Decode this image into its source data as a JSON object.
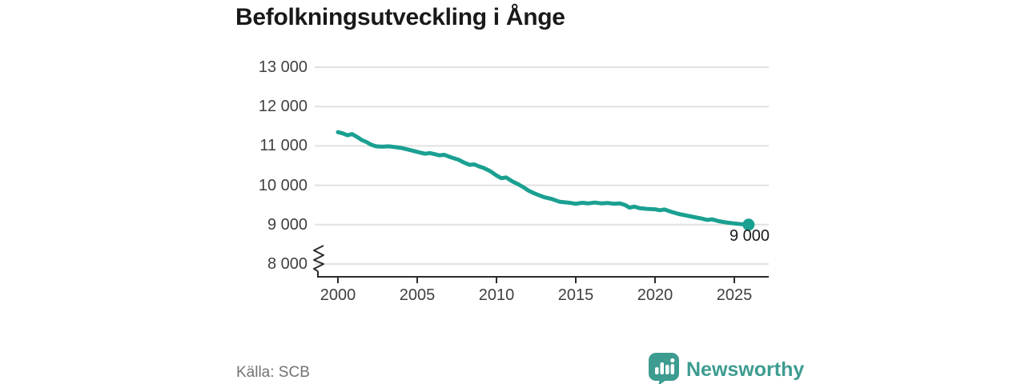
{
  "title": "Befolkningsutveckling i Ånge",
  "source": "Källa: SCB",
  "brand": {
    "name": "Newsworthy",
    "icon": "newsworthy-speech-bubble-bar-chart",
    "color": "#3d9c90"
  },
  "colors": {
    "line": "#1aa091",
    "grid": "#e1e1e1",
    "axis": "#2b2b2b",
    "tick_text": "#404040",
    "title_text": "#191919",
    "source_text": "#737373"
  },
  "chart_data": {
    "type": "line",
    "title": "Befolkningsutveckling i Ånge",
    "xlabel": "",
    "ylabel": "",
    "x_tick_labels": [
      "2000",
      "2005",
      "2010",
      "2015",
      "2020",
      "2025"
    ],
    "x_tick_values": [
      2000,
      2005,
      2010,
      2015,
      2020,
      2025
    ],
    "y_tick_labels": [
      "13 000",
      "12 000",
      "11 000",
      "10 000",
      "9 000",
      "8 000"
    ],
    "y_tick_values": [
      13000,
      12000,
      11000,
      10000,
      9000,
      8000
    ],
    "x_range": [
      2000,
      2026
    ],
    "y_range_displayed": [
      8000,
      13000
    ],
    "axis_break_at_bottom": true,
    "grid": "horizontal",
    "legend": "none",
    "end_label": "9 000",
    "end_value": 9000,
    "series": [
      {
        "points": [
          [
            2000.0,
            11350
          ],
          [
            2000.3,
            11320
          ],
          [
            2000.6,
            11270
          ],
          [
            2000.9,
            11300
          ],
          [
            2001.2,
            11230
          ],
          [
            2001.5,
            11150
          ],
          [
            2001.8,
            11100
          ],
          [
            2002.1,
            11030
          ],
          [
            2002.4,
            10990
          ],
          [
            2002.8,
            10980
          ],
          [
            2003.2,
            10990
          ],
          [
            2003.6,
            10970
          ],
          [
            2004.0,
            10950
          ],
          [
            2004.4,
            10910
          ],
          [
            2004.8,
            10870
          ],
          [
            2005.2,
            10830
          ],
          [
            2005.5,
            10800
          ],
          [
            2005.8,
            10820
          ],
          [
            2006.1,
            10790
          ],
          [
            2006.4,
            10760
          ],
          [
            2006.7,
            10775
          ],
          [
            2007.0,
            10730
          ],
          [
            2007.3,
            10690
          ],
          [
            2007.6,
            10650
          ],
          [
            2008.0,
            10570
          ],
          [
            2008.3,
            10520
          ],
          [
            2008.6,
            10530
          ],
          [
            2008.9,
            10480
          ],
          [
            2009.2,
            10440
          ],
          [
            2009.6,
            10360
          ],
          [
            2010.0,
            10250
          ],
          [
            2010.3,
            10180
          ],
          [
            2010.6,
            10200
          ],
          [
            2011.0,
            10100
          ],
          [
            2011.4,
            10020
          ],
          [
            2011.7,
            9950
          ],
          [
            2012.0,
            9870
          ],
          [
            2012.3,
            9810
          ],
          [
            2012.6,
            9760
          ],
          [
            2013.0,
            9700
          ],
          [
            2013.5,
            9650
          ],
          [
            2014.0,
            9580
          ],
          [
            2014.5,
            9560
          ],
          [
            2015.0,
            9530
          ],
          [
            2015.4,
            9555
          ],
          [
            2015.8,
            9540
          ],
          [
            2016.2,
            9560
          ],
          [
            2016.6,
            9540
          ],
          [
            2017.0,
            9550
          ],
          [
            2017.4,
            9530
          ],
          [
            2017.8,
            9540
          ],
          [
            2018.1,
            9500
          ],
          [
            2018.4,
            9430
          ],
          [
            2018.7,
            9460
          ],
          [
            2019.0,
            9420
          ],
          [
            2019.5,
            9400
          ],
          [
            2020.0,
            9390
          ],
          [
            2020.3,
            9365
          ],
          [
            2020.6,
            9385
          ],
          [
            2021.0,
            9330
          ],
          [
            2021.5,
            9270
          ],
          [
            2022.0,
            9230
          ],
          [
            2022.5,
            9190
          ],
          [
            2023.0,
            9150
          ],
          [
            2023.3,
            9120
          ],
          [
            2023.6,
            9135
          ],
          [
            2024.0,
            9090
          ],
          [
            2024.5,
            9055
          ],
          [
            2025.0,
            9030
          ],
          [
            2025.5,
            9010
          ],
          [
            2025.9,
            9000
          ]
        ]
      }
    ]
  }
}
